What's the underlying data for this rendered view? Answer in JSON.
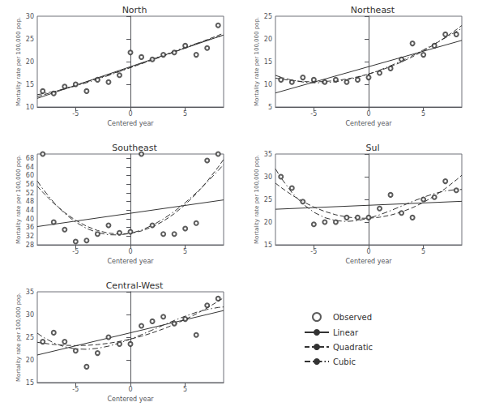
{
  "chart_data": [
    {
      "type": "scatter",
      "title": "North",
      "x_label": "Centered year",
      "y_label": "Mortality rate per 100,000 pop.",
      "xlim": [
        -8.5,
        8.5
      ],
      "xticks": [
        -5,
        0,
        5
      ],
      "ylim": [
        10,
        30
      ],
      "yticks": [
        10,
        15,
        20,
        25,
        30
      ],
      "grid": false,
      "series": [
        {
          "name": "Observed",
          "type": "scatter",
          "marker": "circle",
          "color": "#333333",
          "x": [
            -8,
            -7,
            -6,
            -5,
            -4,
            -3,
            -2,
            -1,
            0,
            1,
            2,
            3,
            4,
            5,
            6,
            7,
            8
          ],
          "values": [
            13.5,
            13.0,
            14.5,
            15.0,
            13.5,
            16.0,
            15.5,
            17.0,
            22.0,
            21.0,
            20.5,
            21.5,
            22.0,
            23.5,
            21.5,
            23.0,
            28.0
          ]
        },
        {
          "name": "Linear",
          "type": "line",
          "line_style": "solid",
          "color": "#333333",
          "x": [
            -8.5,
            8.5
          ],
          "values": [
            11.9032,
            25.8615
          ]
        },
        {
          "name": "Quadratic",
          "type": "line",
          "line_style": "dashed",
          "color": "#333333",
          "x": [
            -8.5,
            -8,
            -7,
            -6,
            -5,
            -4,
            -3,
            -2,
            -1,
            0,
            1,
            2,
            3,
            4,
            5,
            6,
            7,
            8,
            8.5
          ],
          "values": [
            12.2891,
            12.6337,
            13.3347,
            14.0518,
            14.785,
            15.5341,
            16.2992,
            17.0802,
            17.8773,
            18.6904,
            19.5195,
            20.3646,
            21.2256,
            22.1027,
            22.9958,
            23.9048,
            24.8299,
            25.7709,
            26.2475
          ]
        },
        {
          "name": "Cubic",
          "type": "line",
          "line_style": "dashdot",
          "color": "#333333",
          "x": [
            -8.5,
            -8,
            -7,
            -6,
            -5,
            -4,
            -3,
            -2,
            -1,
            0,
            1,
            2,
            3,
            4,
            5,
            6,
            7,
            8,
            8.5
          ],
          "values": [
            12.7168,
            12.9226,
            13.407,
            13.9796,
            14.6302,
            15.3483,
            16.1237,
            16.9461,
            17.8051,
            18.6904,
            19.5917,
            20.4987,
            21.4011,
            22.2885,
            23.1506,
            23.977,
            24.7576,
            25.482,
            25.8198
          ]
        }
      ]
    },
    {
      "type": "scatter",
      "title": "Northeast",
      "x_label": "Centered year",
      "y_label": "Mortality rate per 100,000 pop.",
      "xlim": [
        -8.5,
        8.5
      ],
      "xticks": [
        -5,
        0,
        5
      ],
      "ylim": [
        5,
        25
      ],
      "yticks": [
        5,
        10,
        15,
        20,
        25
      ],
      "grid": false,
      "series": [
        {
          "name": "Observed",
          "type": "scatter",
          "marker": "circle",
          "color": "#333333",
          "x": [
            -8,
            -7,
            -6,
            -5,
            -4,
            -3,
            -2,
            -1,
            0,
            1,
            2,
            3,
            4,
            5,
            6,
            7,
            8
          ],
          "values": [
            11.0,
            10.5,
            11.5,
            11.0,
            10.5,
            11.0,
            10.5,
            11.0,
            11.5,
            12.5,
            13.5,
            15.5,
            19.0,
            16.5,
            18.5,
            21.0,
            21.0
          ]
        },
        {
          "name": "Linear",
          "type": "line",
          "line_style": "solid",
          "color": "#333333",
          "x": [
            -8.5,
            8.5
          ],
          "values": [
            8.0907,
            19.674
          ]
        },
        {
          "name": "Quadratic",
          "type": "line",
          "line_style": "dashed",
          "color": "#333333",
          "x": [
            -8.5,
            -8,
            -7,
            -6,
            -5,
            -4,
            -3,
            -2,
            -1,
            0,
            1,
            2,
            3,
            4,
            5,
            6,
            7,
            8,
            8.5
          ],
          "values": [
            11.3584,
            11.1403,
            10.8059,
            10.6068,
            10.5432,
            10.6151,
            10.8224,
            11.1652,
            11.6433,
            12.257,
            13.0061,
            13.8906,
            14.9106,
            16.0661,
            17.357,
            18.7832,
            20.3451,
            22.0423,
            22.9418
          ]
        },
        {
          "name": "Cubic",
          "type": "line",
          "line_style": "dashdot",
          "color": "#333333",
          "x": [
            -8.5,
            -8,
            -7,
            -6,
            -5,
            -4,
            -3,
            -2,
            -1,
            0,
            1,
            2,
            3,
            4,
            5,
            6,
            7,
            8,
            8.5
          ],
          "values": [
            11.9678,
            11.5521,
            10.9088,
            10.5038,
            10.3226,
            10.3504,
            10.5724,
            10.974,
            11.5404,
            12.257,
            13.109,
            14.0818,
            15.1606,
            16.3308,
            17.5776,
            18.8862,
            20.2422,
            21.6305,
            22.3324
          ]
        }
      ]
    },
    {
      "type": "scatter",
      "title": "Southeast",
      "x_label": "Centered year",
      "y_label": "Mortality rate per 100,000 pop.",
      "xlim": [
        -8.5,
        8.5
      ],
      "xticks": [
        -5,
        0,
        5
      ],
      "ylim": [
        28,
        70
      ],
      "yticks": [
        28,
        32,
        36,
        40,
        44,
        48,
        52,
        56,
        60,
        64,
        68
      ],
      "grid": false,
      "series": [
        {
          "name": "Observed",
          "type": "scatter",
          "marker": "circle",
          "color": "#333333",
          "x": [
            -8,
            -7,
            -6,
            -5,
            -4,
            -3,
            -2,
            -1,
            0,
            1,
            2,
            3,
            4,
            5,
            6,
            7,
            8
          ],
          "values": [
            70.0,
            38.5,
            35.0,
            29.5,
            30.0,
            33.0,
            37.0,
            33.5,
            34.0,
            70.0,
            37.0,
            33.0,
            33.0,
            35.5,
            38.0,
            67.0,
            70.0
          ]
        },
        {
          "name": "Linear",
          "type": "line",
          "line_style": "solid",
          "color": "#333333",
          "x": [
            -8.5,
            8.5
          ],
          "values": [
            36.4216,
            48.7549
          ]
        },
        {
          "name": "Quadratic",
          "type": "line",
          "line_style": "dashed",
          "color": "#333333",
          "x": [
            -8.5,
            -8,
            -7,
            -6,
            -5,
            -4,
            -3,
            -2,
            -1,
            0,
            1,
            2,
            3,
            4,
            5,
            6,
            7,
            8,
            8.5
          ],
          "values": [
            55.1439,
            52.3055,
            47.2106,
            42.8917,
            39.3489,
            36.582,
            34.5913,
            33.3767,
            32.9381,
            33.2755,
            34.3891,
            36.2787,
            38.9443,
            42.386,
            46.6038,
            51.5975,
            57.3674,
            63.9133,
            67.4773
          ]
        },
        {
          "name": "Cubic",
          "type": "line",
          "line_style": "dashdot",
          "color": "#333333",
          "x": [
            -8.5,
            -8,
            -7,
            -6,
            -5,
            -4,
            -3,
            -2,
            -1,
            0,
            1,
            2,
            3,
            4,
            5,
            6,
            7,
            8,
            8.5
          ],
          "values": [
            57.5066,
            53.902,
            47.6097,
            42.4925,
            38.4936,
            35.5557,
            33.622,
            32.6355,
            32.539,
            33.2755,
            34.7882,
            37.0199,
            39.9136,
            43.4123,
            47.459,
            51.9967,
            56.9683,
            62.3168,
            65.1146
          ]
        }
      ]
    },
    {
      "type": "scatter",
      "title": "Sul",
      "x_label": "Centered year",
      "y_label": "Mortality rate per 100,000 pop.",
      "xlim": [
        -8.5,
        8.5
      ],
      "xticks": [
        -5,
        0,
        5
      ],
      "ylim": [
        15,
        35
      ],
      "yticks": [
        15,
        20,
        25,
        30,
        35
      ],
      "grid": false,
      "series": [
        {
          "name": "Observed",
          "type": "scatter",
          "marker": "circle",
          "color": "#333333",
          "x": [
            -8,
            -7,
            -6,
            -5,
            -4,
            -3,
            -2,
            -1,
            0,
            1,
            2,
            3,
            4,
            5,
            6,
            7,
            8
          ],
          "values": [
            30.0,
            27.5,
            24.5,
            19.5,
            20.0,
            20.0,
            21.0,
            21.0,
            21.0,
            23.0,
            26.0,
            22.0,
            21.0,
            25.0,
            25.5,
            29.0,
            27.0
          ]
        },
        {
          "name": "Linear",
          "type": "line",
          "line_style": "solid",
          "color": "#333333",
          "x": [
            -8.5,
            8.5
          ],
          "values": [
            22.8309,
            24.5809
          ]
        },
        {
          "name": "Quadratic",
          "type": "line",
          "line_style": "dashed",
          "color": "#333333",
          "x": [
            -8.5,
            -8,
            -7,
            -6,
            -5,
            -4,
            -3,
            -2,
            -1,
            0,
            1,
            2,
            3,
            4,
            5,
            6,
            7,
            8,
            8.5
          ],
          "values": [
            28.5758,
            27.645,
            25.9619,
            24.5171,
            23.3102,
            22.3416,
            21.6111,
            21.1187,
            20.8645,
            20.8483,
            21.0703,
            21.5305,
            22.2287,
            23.1652,
            24.3396,
            25.7523,
            27.4031,
            29.292,
            30.3258
          ]
        },
        {
          "name": "Cubic",
          "type": "line",
          "line_style": "dashdot",
          "color": "#333333",
          "x": [
            -8.5,
            -8,
            -7,
            -6,
            -5,
            -4,
            -3,
            -2,
            -1,
            0,
            1,
            2,
            3,
            4,
            5,
            6,
            7,
            8,
            8.5
          ],
          "values": [
            31.7189,
            29.7688,
            26.4929,
            23.9861,
            22.1724,
            20.9763,
            20.3216,
            20.1326,
            20.3335,
            20.8483,
            21.6013,
            22.5166,
            23.5182,
            24.5305,
            25.4774,
            26.2833,
            26.8721,
            27.1682,
            27.1827
          ]
        }
      ]
    },
    {
      "type": "scatter",
      "title": "Central-West",
      "x_label": "Centered year",
      "y_label": "Mortality rate per 100,000 pop.",
      "xlim": [
        -8.5,
        8.5
      ],
      "xticks": [
        -5,
        0,
        5
      ],
      "ylim": [
        15,
        35
      ],
      "yticks": [
        15,
        20,
        25,
        30,
        35
      ],
      "grid": false,
      "legend": "lower right",
      "series": [
        {
          "name": "Observed",
          "type": "scatter",
          "marker": "circle",
          "color": "#333333",
          "x": [
            -8,
            -7,
            -6,
            -5,
            -4,
            -3,
            -2,
            -1,
            0,
            1,
            2,
            3,
            4,
            5,
            6,
            7,
            8
          ],
          "values": [
            24.0,
            26.0,
            24.0,
            22.0,
            18.5,
            21.5,
            25.0,
            23.5,
            23.5,
            27.5,
            28.5,
            29.5,
            28.0,
            29.0,
            25.5,
            32.0,
            33.5
          ]
        },
        {
          "name": "Linear",
          "type": "line",
          "line_style": "solid",
          "color": "#333333",
          "x": [
            -8.5,
            8.5
          ],
          "values": [
            21.0748,
            30.8664
          ]
        },
        {
          "name": "Quadratic",
          "type": "line",
          "line_style": "dashed",
          "color": "#333333",
          "x": [
            -8.5,
            -8,
            -7,
            -6,
            -5,
            -4,
            -3,
            -2,
            -1,
            0,
            1,
            2,
            3,
            4,
            5,
            6,
            7,
            8,
            8.5
          ],
          "values": [
            23.8819,
            23.6899,
            23.3932,
            23.2128,
            23.1489,
            23.2013,
            23.37,
            23.655,
            24.0565,
            24.5743,
            25.2085,
            25.959,
            26.8258,
            27.8091,
            28.9087,
            30.1246,
            31.457,
            32.9055,
            33.6735
          ]
        },
        {
          "name": "Cubic",
          "type": "line",
          "line_style": "dashdot",
          "color": "#333333",
          "x": [
            -8.5,
            -8,
            -7,
            -6,
            -5,
            -4,
            -3,
            -2,
            -1,
            0,
            1,
            2,
            3,
            4,
            5,
            6,
            7,
            8,
            8.5
          ],
          "values": [
            25.8917,
            25.048,
            23.7328,
            22.8733,
            22.4213,
            22.3282,
            22.5454,
            23.0245,
            23.717,
            24.5743,
            25.548,
            26.5895,
            27.6504,
            28.6822,
            29.6363,
            30.4641,
            31.1174,
            31.5474,
            31.6637
          ]
        }
      ]
    }
  ]
}
